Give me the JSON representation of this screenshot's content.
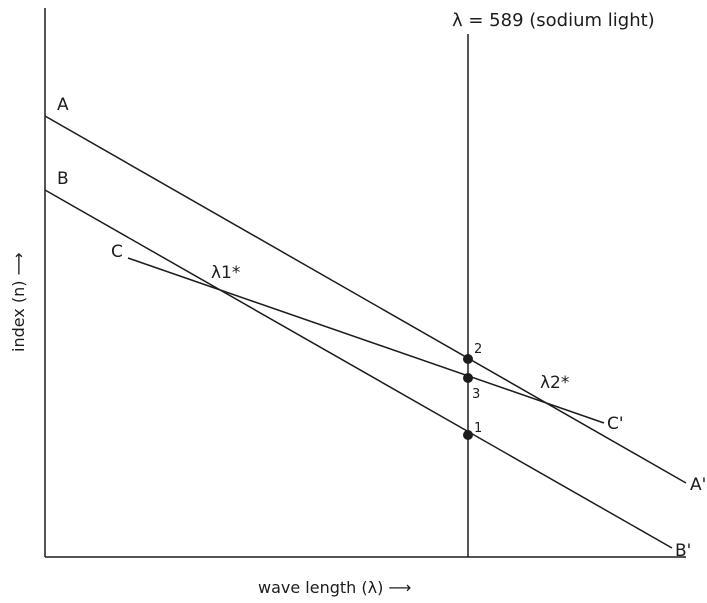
{
  "reference_line": {
    "label": "λ = 589 (sodium light)"
  },
  "axes": {
    "y_label": "index (n) ⟶",
    "x_label": "wave length (λ) ⟶"
  },
  "lines": [
    {
      "id": "A",
      "start_label": "A",
      "end_label": "A'"
    },
    {
      "id": "B",
      "start_label": "B",
      "end_label": "B'"
    },
    {
      "id": "C",
      "start_label": "C",
      "end_label": "C'"
    }
  ],
  "intersections": [
    {
      "label": "λ1*"
    },
    {
      "label": "λ2*"
    }
  ],
  "points": [
    {
      "label": "1",
      "on_line": "B"
    },
    {
      "label": "2",
      "on_line": "A"
    },
    {
      "label": "3",
      "on_line": "C"
    }
  ]
}
